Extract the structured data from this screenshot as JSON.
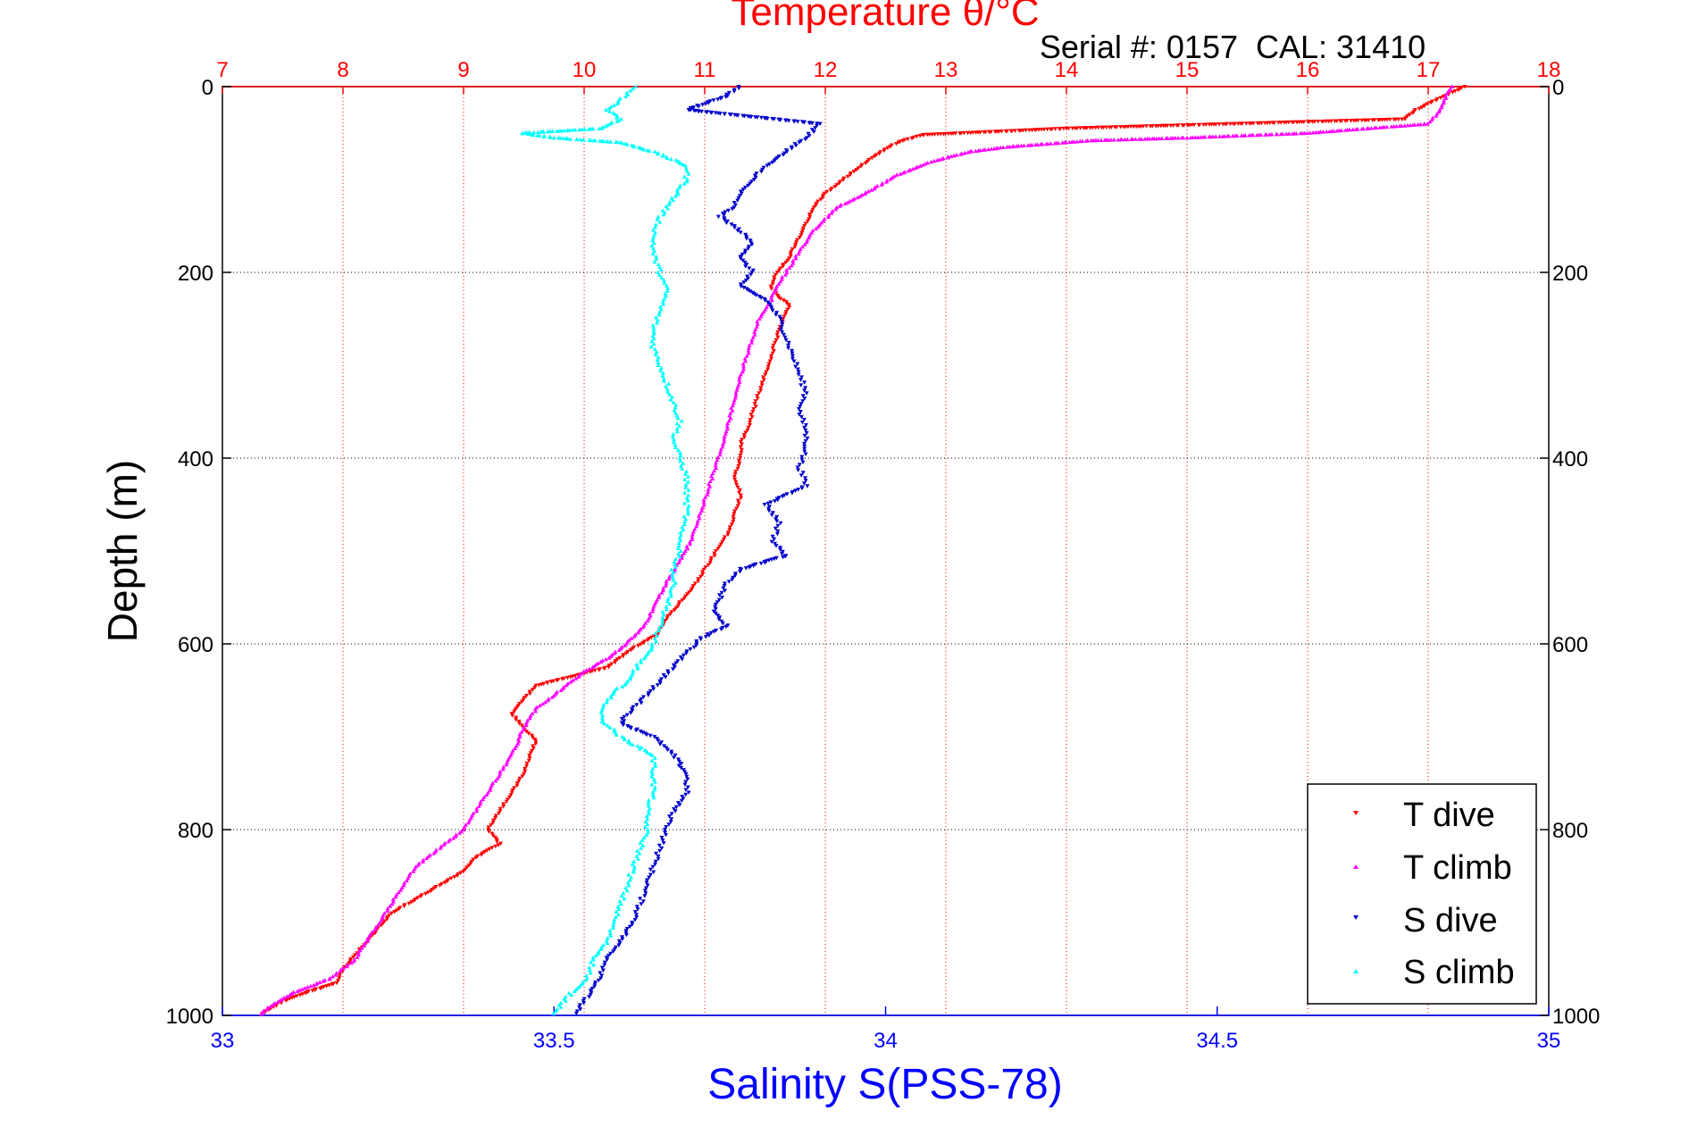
{
  "header": {
    "serial_label": "Serial #: 0157  CAL: 31410"
  },
  "colors": {
    "t_dive": "#ff0000",
    "t_climb": "#ff00ff",
    "s_dive": "#0000cc",
    "s_climb": "#00ffff",
    "temp_axis": "#ff0000",
    "sal_axis": "#0000ff",
    "grid_temp": "#ff0000",
    "grid_depth": "#000000"
  },
  "chart_data": {
    "type": "scatter",
    "title": "Temperature θ/°C",
    "xlabel": "Salinity S(PSS-78)",
    "ylabel": "Depth (m)",
    "top_axis": {
      "label": "Temperature θ/°C",
      "range": [
        7,
        18
      ],
      "ticks": [
        "7",
        "8",
        "9",
        "10",
        "11",
        "12",
        "13",
        "14",
        "15",
        "16",
        "17",
        "18"
      ]
    },
    "bottom_axis": {
      "label": "Salinity S(PSS-78)",
      "range": [
        33,
        35
      ],
      "ticks": [
        "33",
        "33.5",
        "34",
        "34.5",
        "35"
      ]
    },
    "y_axis": {
      "label": "Depth (m)",
      "range": [
        0,
        1000
      ],
      "reversed": true,
      "ticks": [
        "0",
        "200",
        "400",
        "600",
        "800",
        "1000"
      ]
    },
    "grid": true,
    "legend_position": "bottom-right",
    "series": [
      {
        "name": "T dive",
        "axis": "temperature",
        "marker": "triangle-down",
        "points": [
          [
            17.3,
            0
          ],
          [
            17.1,
            12
          ],
          [
            16.9,
            25
          ],
          [
            16.8,
            35
          ],
          [
            14,
            45
          ],
          [
            12.8,
            52
          ],
          [
            12.6,
            60
          ],
          [
            12.4,
            75
          ],
          [
            12.2,
            95
          ],
          [
            12.0,
            115
          ],
          [
            11.9,
            130
          ],
          [
            11.85,
            145
          ],
          [
            11.8,
            160
          ],
          [
            11.75,
            170
          ],
          [
            11.7,
            185
          ],
          [
            11.6,
            200
          ],
          [
            11.55,
            215
          ],
          [
            11.6,
            225
          ],
          [
            11.7,
            235
          ],
          [
            11.65,
            250
          ],
          [
            11.6,
            270
          ],
          [
            11.55,
            290
          ],
          [
            11.5,
            310
          ],
          [
            11.45,
            330
          ],
          [
            11.4,
            350
          ],
          [
            11.35,
            370
          ],
          [
            11.3,
            385
          ],
          [
            11.3,
            400
          ],
          [
            11.25,
            420
          ],
          [
            11.3,
            440
          ],
          [
            11.25,
            460
          ],
          [
            11.2,
            480
          ],
          [
            11.1,
            500
          ],
          [
            11.0,
            520
          ],
          [
            10.9,
            540
          ],
          [
            10.8,
            555
          ],
          [
            10.7,
            570
          ],
          [
            10.6,
            590
          ],
          [
            10.4,
            605
          ],
          [
            10.3,
            615
          ],
          [
            10.2,
            625
          ],
          [
            9.9,
            635
          ],
          [
            9.6,
            645
          ],
          [
            9.5,
            660
          ],
          [
            9.4,
            675
          ],
          [
            9.5,
            690
          ],
          [
            9.6,
            705
          ],
          [
            9.55,
            720
          ],
          [
            9.5,
            740
          ],
          [
            9.4,
            760
          ],
          [
            9.3,
            780
          ],
          [
            9.2,
            800
          ],
          [
            9.3,
            815
          ],
          [
            9.1,
            830
          ],
          [
            9.0,
            845
          ],
          [
            8.8,
            860
          ],
          [
            8.6,
            875
          ],
          [
            8.4,
            890
          ],
          [
            8.3,
            905
          ],
          [
            8.2,
            920
          ],
          [
            8.1,
            935
          ],
          [
            8.0,
            950
          ],
          [
            7.95,
            965
          ],
          [
            7.7,
            975
          ],
          [
            7.5,
            985
          ],
          [
            7.3,
            1000
          ]
        ]
      },
      {
        "name": "T climb",
        "axis": "temperature",
        "marker": "triangle-up",
        "points": [
          [
            17.2,
            0
          ],
          [
            17.15,
            10
          ],
          [
            17.1,
            25
          ],
          [
            17.0,
            40
          ],
          [
            16.0,
            50
          ],
          [
            15.0,
            55
          ],
          [
            14.2,
            58
          ],
          [
            13.5,
            65
          ],
          [
            13.2,
            70
          ],
          [
            12.9,
            80
          ],
          [
            12.6,
            95
          ],
          [
            12.4,
            110
          ],
          [
            12.1,
            130
          ],
          [
            11.9,
            155
          ],
          [
            11.8,
            175
          ],
          [
            11.7,
            195
          ],
          [
            11.6,
            215
          ],
          [
            11.55,
            230
          ],
          [
            11.45,
            250
          ],
          [
            11.4,
            270
          ],
          [
            11.35,
            290
          ],
          [
            11.3,
            310
          ],
          [
            11.25,
            335
          ],
          [
            11.2,
            360
          ],
          [
            11.15,
            385
          ],
          [
            11.1,
            405
          ],
          [
            11.05,
            425
          ],
          [
            11.0,
            445
          ],
          [
            10.95,
            465
          ],
          [
            10.9,
            485
          ],
          [
            10.8,
            510
          ],
          [
            10.7,
            530
          ],
          [
            10.6,
            555
          ],
          [
            10.5,
            580
          ],
          [
            10.35,
            600
          ],
          [
            10.2,
            615
          ],
          [
            10.0,
            630
          ],
          [
            9.8,
            650
          ],
          [
            9.6,
            670
          ],
          [
            9.5,
            690
          ],
          [
            9.45,
            705
          ],
          [
            9.4,
            720
          ],
          [
            9.3,
            740
          ],
          [
            9.2,
            760
          ],
          [
            9.1,
            780
          ],
          [
            9.0,
            800
          ],
          [
            8.8,
            820
          ],
          [
            8.6,
            840
          ],
          [
            8.5,
            860
          ],
          [
            8.4,
            880
          ],
          [
            8.3,
            900
          ],
          [
            8.2,
            920
          ],
          [
            8.1,
            940
          ],
          [
            7.9,
            960
          ],
          [
            7.6,
            975
          ],
          [
            7.4,
            990
          ],
          [
            7.3,
            1000
          ]
        ]
      },
      {
        "name": "S dive",
        "axis": "salinity",
        "marker": "triangle-down",
        "points": [
          [
            33.78,
            0
          ],
          [
            33.76,
            10
          ],
          [
            33.7,
            25
          ],
          [
            33.9,
            40
          ],
          [
            33.88,
            55
          ],
          [
            33.85,
            70
          ],
          [
            33.82,
            85
          ],
          [
            33.8,
            100
          ],
          [
            33.78,
            115
          ],
          [
            33.77,
            130
          ],
          [
            33.75,
            140
          ],
          [
            33.78,
            155
          ],
          [
            33.8,
            170
          ],
          [
            33.78,
            185
          ],
          [
            33.8,
            200
          ],
          [
            33.78,
            215
          ],
          [
            33.82,
            230
          ],
          [
            33.84,
            250
          ],
          [
            33.85,
            270
          ],
          [
            33.86,
            290
          ],
          [
            33.87,
            310
          ],
          [
            33.88,
            330
          ],
          [
            33.87,
            350
          ],
          [
            33.88,
            370
          ],
          [
            33.88,
            390
          ],
          [
            33.87,
            410
          ],
          [
            33.88,
            430
          ],
          [
            33.82,
            450
          ],
          [
            33.84,
            470
          ],
          [
            33.83,
            490
          ],
          [
            33.85,
            505
          ],
          [
            33.78,
            520
          ],
          [
            33.76,
            535
          ],
          [
            33.75,
            550
          ],
          [
            33.74,
            565
          ],
          [
            33.76,
            580
          ],
          [
            33.72,
            595
          ],
          [
            33.7,
            610
          ],
          [
            33.68,
            625
          ],
          [
            33.66,
            640
          ],
          [
            33.64,
            655
          ],
          [
            33.62,
            670
          ],
          [
            33.6,
            685
          ],
          [
            33.65,
            700
          ],
          [
            33.68,
            720
          ],
          [
            33.7,
            740
          ],
          [
            33.7,
            760
          ],
          [
            33.68,
            780
          ],
          [
            33.67,
            800
          ],
          [
            33.66,
            820
          ],
          [
            33.65,
            840
          ],
          [
            33.64,
            860
          ],
          [
            33.63,
            880
          ],
          [
            33.62,
            900
          ],
          [
            33.6,
            920
          ],
          [
            33.58,
            940
          ],
          [
            33.57,
            960
          ],
          [
            33.55,
            980
          ],
          [
            33.53,
            1000
          ]
        ]
      },
      {
        "name": "S climb",
        "axis": "salinity",
        "marker": "triangle-up",
        "points": [
          [
            33.62,
            0
          ],
          [
            33.6,
            15
          ],
          [
            33.58,
            25
          ],
          [
            33.6,
            35
          ],
          [
            33.57,
            45
          ],
          [
            33.45,
            50
          ],
          [
            33.5,
            55
          ],
          [
            33.6,
            60
          ],
          [
            33.65,
            70
          ],
          [
            33.7,
            85
          ],
          [
            33.7,
            100
          ],
          [
            33.68,
            120
          ],
          [
            33.66,
            140
          ],
          [
            33.65,
            160
          ],
          [
            33.65,
            180
          ],
          [
            33.66,
            200
          ],
          [
            33.67,
            220
          ],
          [
            33.66,
            240
          ],
          [
            33.65,
            260
          ],
          [
            33.65,
            280
          ],
          [
            33.66,
            300
          ],
          [
            33.67,
            320
          ],
          [
            33.68,
            340
          ],
          [
            33.69,
            360
          ],
          [
            33.68,
            380
          ],
          [
            33.69,
            400
          ],
          [
            33.7,
            420
          ],
          [
            33.7,
            440
          ],
          [
            33.7,
            460
          ],
          [
            33.69,
            480
          ],
          [
            33.69,
            500
          ],
          [
            33.68,
            520
          ],
          [
            33.68,
            540
          ],
          [
            33.67,
            560
          ],
          [
            33.66,
            580
          ],
          [
            33.65,
            600
          ],
          [
            33.63,
            620
          ],
          [
            33.61,
            640
          ],
          [
            33.58,
            660
          ],
          [
            33.57,
            680
          ],
          [
            33.6,
            700
          ],
          [
            33.65,
            720
          ],
          [
            33.65,
            740
          ],
          [
            33.65,
            760
          ],
          [
            33.64,
            780
          ],
          [
            33.64,
            800
          ],
          [
            33.63,
            820
          ],
          [
            33.62,
            840
          ],
          [
            33.61,
            860
          ],
          [
            33.6,
            880
          ],
          [
            33.59,
            900
          ],
          [
            33.58,
            920
          ],
          [
            33.56,
            940
          ],
          [
            33.55,
            960
          ],
          [
            33.52,
            980
          ],
          [
            33.5,
            1000
          ]
        ]
      }
    ]
  }
}
